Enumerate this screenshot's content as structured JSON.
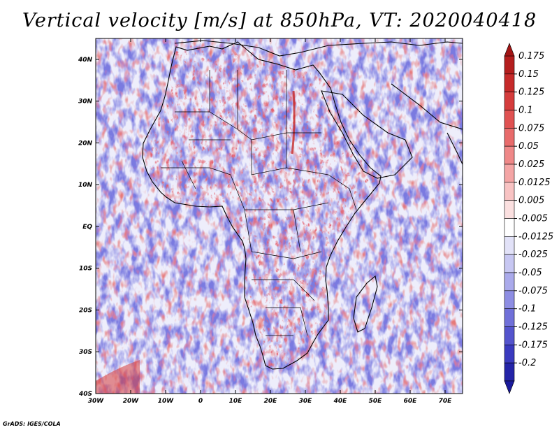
{
  "title": "Vertical velocity [m/s] at 850hPa, VT: 2020040418",
  "footer": "GrADS: IGES/COLA",
  "map": {
    "lon_range": [
      -30,
      75
    ],
    "lat_range": [
      -40,
      45
    ],
    "lon_ticks": [
      {
        "value": -30,
        "label": "30W"
      },
      {
        "value": -20,
        "label": "20W"
      },
      {
        "value": -10,
        "label": "10W"
      },
      {
        "value": 0,
        "label": "0"
      },
      {
        "value": 10,
        "label": "10E"
      },
      {
        "value": 20,
        "label": "20E"
      },
      {
        "value": 30,
        "label": "30E"
      },
      {
        "value": 40,
        "label": "40E"
      },
      {
        "value": 50,
        "label": "50E"
      },
      {
        "value": 60,
        "label": "60E"
      },
      {
        "value": 70,
        "label": "70E"
      }
    ],
    "lat_ticks": [
      {
        "value": 40,
        "label": "40N"
      },
      {
        "value": 30,
        "label": "30N"
      },
      {
        "value": 20,
        "label": "20N"
      },
      {
        "value": 10,
        "label": "10N"
      },
      {
        "value": 0,
        "label": "EQ"
      },
      {
        "value": -10,
        "label": "10S"
      },
      {
        "value": -20,
        "label": "20S"
      },
      {
        "value": -30,
        "label": "30S"
      },
      {
        "value": -40,
        "label": "40S"
      }
    ]
  },
  "colorbar": {
    "levels": [
      {
        "label": "0.175",
        "color": "#b41e1e"
      },
      {
        "label": "0.15",
        "color": "#c62a2a"
      },
      {
        "label": "0.125",
        "color": "#d53c3c"
      },
      {
        "label": "0.1",
        "color": "#e05252"
      },
      {
        "label": "0.075",
        "color": "#e86b6b"
      },
      {
        "label": "0.05",
        "color": "#ef8888"
      },
      {
        "label": "0.025",
        "color": "#f4a5a5"
      },
      {
        "label": "0.0125",
        "color": "#f8c3c3"
      },
      {
        "label": "0.005",
        "color": "#fbe0e0"
      },
      {
        "label": "-0.005",
        "color": "#ffffff"
      },
      {
        "label": "-0.0125",
        "color": "#e2e2f8"
      },
      {
        "label": "-0.025",
        "color": "#c7c7f2"
      },
      {
        "label": "-0.05",
        "color": "#aaaaeb"
      },
      {
        "label": "-0.075",
        "color": "#8d8de3"
      },
      {
        "label": "-0.1",
        "color": "#7070d9"
      },
      {
        "label": "-0.125",
        "color": "#5454cd"
      },
      {
        "label": "-0.175",
        "color": "#3a3abf"
      },
      {
        "label": "-0.2",
        "color": "#2424a8"
      }
    ],
    "top_arrow_color": "#a31515",
    "bottom_arrow_color": "#1a1a9c"
  }
}
